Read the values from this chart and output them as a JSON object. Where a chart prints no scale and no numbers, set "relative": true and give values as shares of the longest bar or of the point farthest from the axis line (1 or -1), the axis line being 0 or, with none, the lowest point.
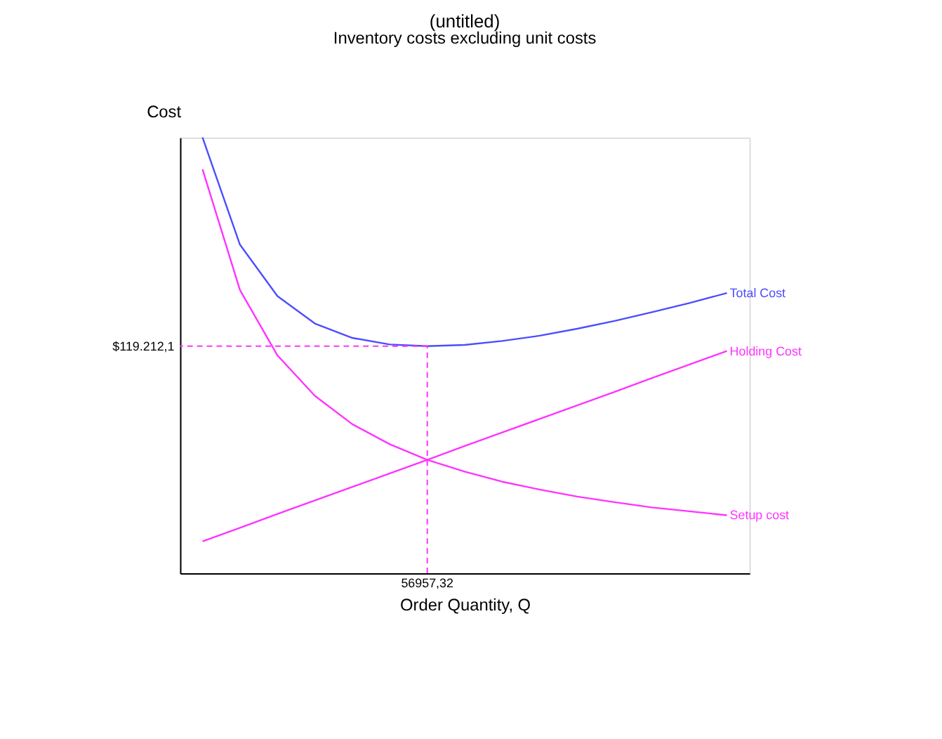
{
  "chart_data": {
    "type": "line",
    "title": "(untitled)",
    "subtitle": "Inventory costs excluding unit costs",
    "xlabel": "Order Quantity, Q",
    "ylabel": "Cost",
    "relative": true,
    "categories": [
      null,
      null,
      null,
      null,
      null,
      null,
      null,
      null,
      null,
      null,
      null,
      null,
      null,
      null,
      null
    ],
    "annotations": [
      "$119.212,1",
      "56957,32"
    ],
    "series": [
      {
        "name": "Total Cost",
        "color": "#4d4dff",
        "values": [
          1,
          0.754,
          0.636,
          0.573,
          0.54,
          0.525,
          0.521,
          0.524,
          0.533,
          0.545,
          0.561,
          0.579,
          0.599,
          0.62,
          0.643
        ]
      },
      {
        "name": "Holding Cost",
        "color": "#ff33ff",
        "values": [
          0.073,
          0.104,
          0.136,
          0.167,
          0.198,
          0.229,
          0.26,
          0.292,
          0.323,
          0.354,
          0.385,
          0.416,
          0.448,
          0.479,
          0.51
        ]
      },
      {
        "name": "Setup cost",
        "color": "#ff33ff",
        "values": [
          0.927,
          0.65,
          0.5,
          0.407,
          0.342,
          0.296,
          0.26,
          0.233,
          0.21,
          0.192,
          0.176,
          0.163,
          0.151,
          0.142,
          0.133
        ]
      }
    ],
    "ref_lines": [
      {
        "axis": "y",
        "value": 0.521,
        "color": "#ff33ff",
        "line_style": "dashed"
      }
    ],
    "grid": false,
    "legend": false,
    "marker": "none",
    "line_style": "solid"
  }
}
